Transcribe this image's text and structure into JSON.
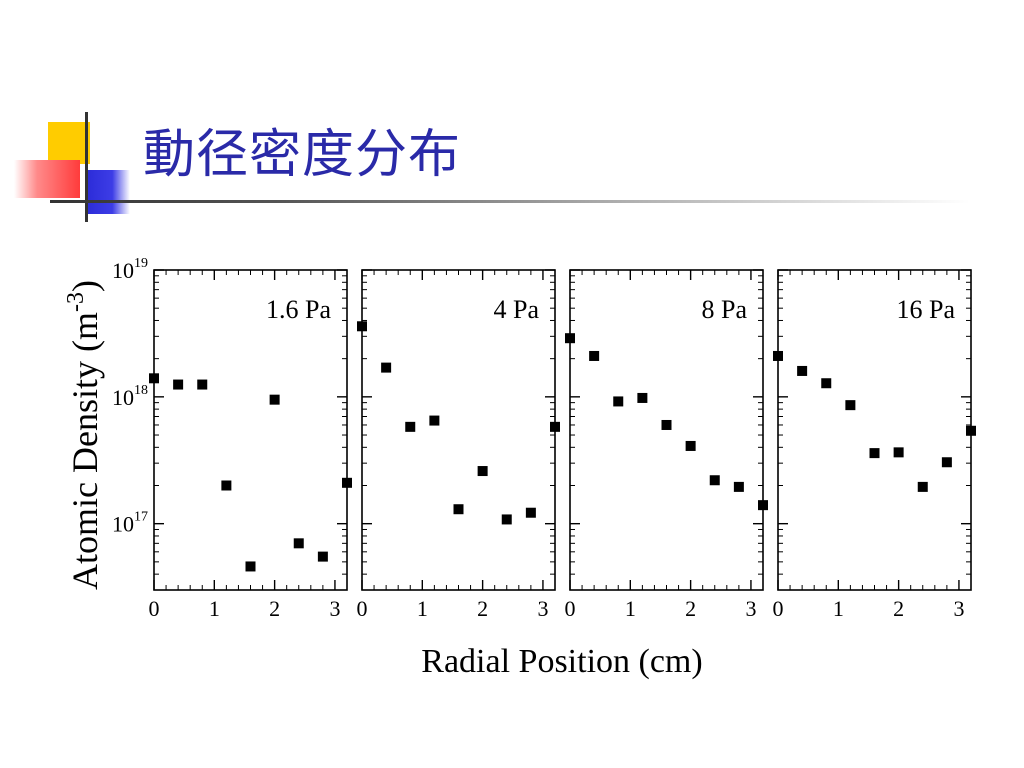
{
  "slide": {
    "title": "動径密度分布"
  },
  "chart_data": {
    "type": "scatter",
    "ylabel_main": "Atomic Density (m",
    "ylabel_sup": "-3",
    "ylabel_close": ")",
    "xlabel": "Radial Position (cm)",
    "y_scale": "log",
    "ylim": [
      3e+16,
      1e+19
    ],
    "y_ticks": [
      {
        "value": 1e+19,
        "base": "10",
        "exp": "19"
      },
      {
        "value": 1e+18,
        "base": "10",
        "exp": "18"
      },
      {
        "value": 1e+17,
        "base": "10",
        "exp": "17"
      }
    ],
    "xlim": [
      0,
      3.2
    ],
    "x_ticks": [
      "0",
      "1",
      "2",
      "3"
    ],
    "marker": "square",
    "marker_color": "#000000",
    "panels": [
      {
        "label": "1.6 Pa",
        "points": [
          [
            0.0,
            1.4e+18
          ],
          [
            0.4,
            1.25e+18
          ],
          [
            0.8,
            1.25e+18
          ],
          [
            1.2,
            2e+17
          ],
          [
            1.6,
            4.6e+16
          ],
          [
            2.0,
            9.5e+17
          ],
          [
            2.4,
            7e+16
          ],
          [
            2.8,
            5.5e+16
          ],
          [
            3.2,
            2.1e+17
          ]
        ]
      },
      {
        "label": "4 Pa",
        "points": [
          [
            0.0,
            3.6e+18
          ],
          [
            0.4,
            1.7e+18
          ],
          [
            0.8,
            5.8e+17
          ],
          [
            1.2,
            6.5e+17
          ],
          [
            1.6,
            1.3e+17
          ],
          [
            2.0,
            2.6e+17
          ],
          [
            2.4,
            1.08e+17
          ],
          [
            2.8,
            1.22e+17
          ],
          [
            3.2,
            5.8e+17
          ]
        ]
      },
      {
        "label": "8 Pa",
        "points": [
          [
            0.0,
            2.9e+18
          ],
          [
            0.4,
            2.1e+18
          ],
          [
            0.8,
            9.2e+17
          ],
          [
            1.2,
            9.8e+17
          ],
          [
            1.6,
            6e+17
          ],
          [
            2.0,
            4.1e+17
          ],
          [
            2.4,
            2.2e+17
          ],
          [
            2.8,
            1.95e+17
          ],
          [
            3.2,
            1.4e+17
          ]
        ]
      },
      {
        "label": "16 Pa",
        "points": [
          [
            0.0,
            2.1e+18
          ],
          [
            0.4,
            1.6e+18
          ],
          [
            0.8,
            1.28e+18
          ],
          [
            1.2,
            8.6e+17
          ],
          [
            1.6,
            3.6e+17
          ],
          [
            2.0,
            3.65e+17
          ],
          [
            2.4,
            1.95e+17
          ],
          [
            2.8,
            3.05e+17
          ],
          [
            3.2,
            5.4e+17
          ]
        ]
      }
    ]
  }
}
